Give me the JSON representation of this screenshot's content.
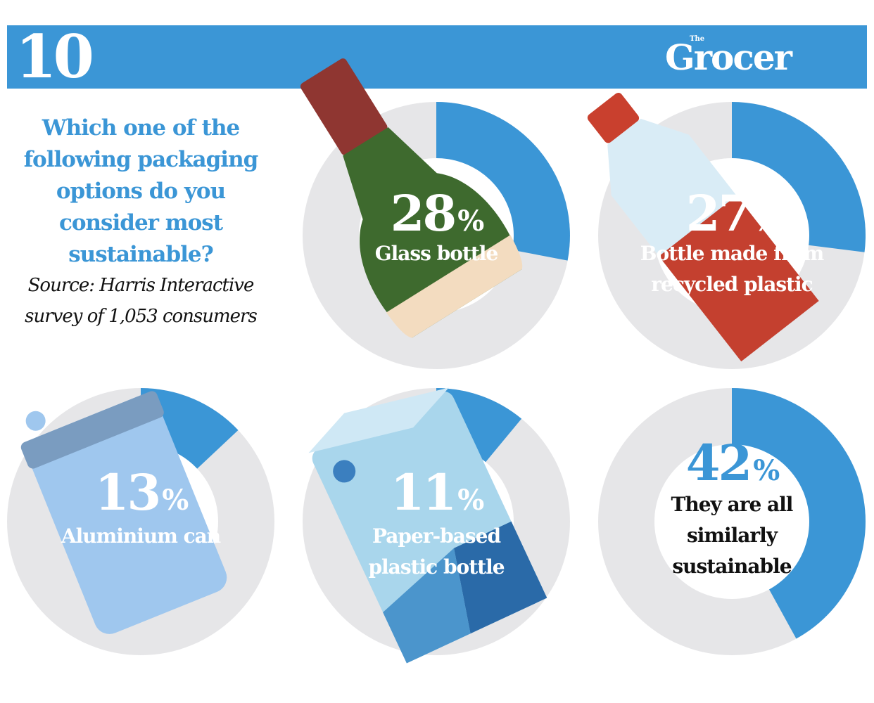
{
  "header": {
    "issue_number": "10",
    "logo_small": "The",
    "logo_word": "Grocer"
  },
  "question": "Which one of the following packaging options do you consider most sustainable?",
  "source": "Source: Harris Interactive survey of 1,053 consumers",
  "colors": {
    "band": "#3b96d6",
    "ring": "#e6e6e8",
    "wedge": "#3b96d6"
  },
  "chart_data": {
    "type": "pie",
    "title": "Which one of the following packaging options do you consider most sustainable?",
    "unit": "%",
    "items": [
      {
        "label": "Glass bottle",
        "value": 28,
        "value_text": "28",
        "icon": "glass-bottle-icon"
      },
      {
        "label": "Bottle made from recycled plastic",
        "value": 27,
        "value_text": "27",
        "icon": "plastic-bottle-icon"
      },
      {
        "label": "Aluminium can",
        "value": 13,
        "value_text": "13",
        "icon": "aluminium-can-icon"
      },
      {
        "label": "Paper-based plastic bottle",
        "value": 11,
        "value_text": "11",
        "icon": "paper-bottle-icon"
      },
      {
        "label": "They are all similarly sustainable",
        "value": 42,
        "value_text": "42",
        "icon": ""
      }
    ]
  }
}
